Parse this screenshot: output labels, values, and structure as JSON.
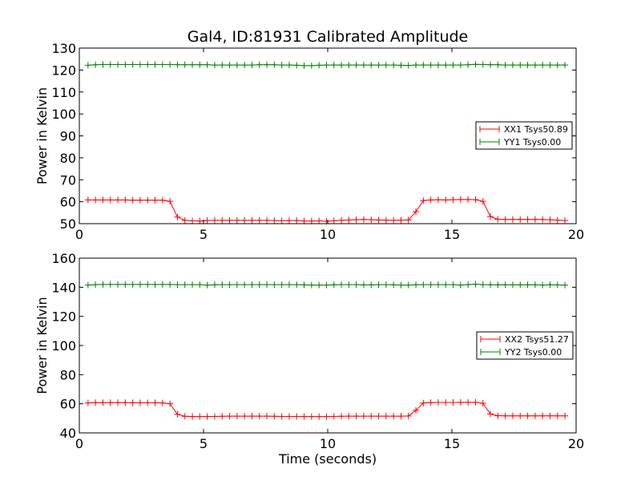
{
  "chart_data": [
    {
      "type": "line",
      "title": "Gal4, ID:81931 Calibrated Amplitude",
      "xlabel": "",
      "ylabel": "Power in Kelvin",
      "xlim": [
        0,
        20
      ],
      "ylim": [
        50,
        130
      ],
      "xticks": [
        0,
        5,
        10,
        15,
        20
      ],
      "yticks": [
        50,
        60,
        70,
        80,
        90,
        100,
        110,
        120,
        130
      ],
      "xtick_labels": [
        "0",
        "5",
        "10",
        "15",
        "20"
      ],
      "ytick_labels": [
        "50",
        "60",
        "70",
        "80",
        "90",
        "100",
        "110",
        "120",
        "130"
      ],
      "grid": false,
      "legend_position": "center-right",
      "marker": "plus",
      "x": [
        0.35,
        0.65,
        0.95,
        1.25,
        1.55,
        1.85,
        2.15,
        2.45,
        2.75,
        3.05,
        3.35,
        3.65,
        3.95,
        4.25,
        4.55,
        4.85,
        5.15,
        5.45,
        5.75,
        6.05,
        6.35,
        6.65,
        6.95,
        7.25,
        7.55,
        7.85,
        8.15,
        8.45,
        8.75,
        9.05,
        9.35,
        9.65,
        9.95,
        10.25,
        10.55,
        10.85,
        11.15,
        11.45,
        11.75,
        12.05,
        12.35,
        12.65,
        12.95,
        13.25,
        13.55,
        13.85,
        14.15,
        14.45,
        14.75,
        15.05,
        15.35,
        15.65,
        15.95,
        16.25,
        16.55,
        16.85,
        17.15,
        17.45,
        17.75,
        18.05,
        18.35,
        18.65,
        18.95,
        19.25,
        19.55
      ],
      "series": [
        {
          "name": "XX1 Tsys50.89",
          "color": "#ff0000",
          "values": [
            60.8,
            60.8,
            60.8,
            60.8,
            60.8,
            60.8,
            60.7,
            60.7,
            60.7,
            60.7,
            60.7,
            60.2,
            53.0,
            51.5,
            51.3,
            51.2,
            51.4,
            51.5,
            51.5,
            51.5,
            51.5,
            51.5,
            51.5,
            51.5,
            51.5,
            51.4,
            51.3,
            51.4,
            51.4,
            51.2,
            51.2,
            51.3,
            51.1,
            51.3,
            51.5,
            51.7,
            51.8,
            51.9,
            51.8,
            51.7,
            51.6,
            51.5,
            51.6,
            51.7,
            55.5,
            60.5,
            60.8,
            60.9,
            60.8,
            60.9,
            61.0,
            61.0,
            60.9,
            60.2,
            53.2,
            52.0,
            51.9,
            51.9,
            51.9,
            51.9,
            51.9,
            51.9,
            51.8,
            51.6,
            51.4
          ]
        },
        {
          "name": "YY1 Tsys0.00",
          "color": "#008000",
          "values": [
            122.2,
            122.4,
            122.5,
            122.5,
            122.5,
            122.5,
            122.5,
            122.5,
            122.5,
            122.5,
            122.5,
            122.5,
            122.4,
            122.4,
            122.4,
            122.4,
            122.4,
            122.3,
            122.3,
            122.3,
            122.3,
            122.3,
            122.3,
            122.4,
            122.4,
            122.4,
            122.3,
            122.3,
            122.2,
            122.0,
            122.0,
            122.2,
            122.3,
            122.3,
            122.3,
            122.3,
            122.3,
            122.3,
            122.3,
            122.3,
            122.3,
            122.3,
            122.2,
            122.1,
            122.3,
            122.3,
            122.3,
            122.3,
            122.3,
            122.3,
            122.3,
            122.4,
            122.6,
            122.5,
            122.4,
            122.4,
            122.3,
            122.3,
            122.3,
            122.3,
            122.3,
            122.3,
            122.3,
            122.3,
            122.3
          ]
        }
      ]
    },
    {
      "type": "line",
      "title": "",
      "xlabel": "Time (seconds)",
      "ylabel": "Power in Kelvin",
      "xlim": [
        0,
        20
      ],
      "ylim": [
        40,
        160
      ],
      "xticks": [
        0,
        5,
        10,
        15,
        20
      ],
      "yticks": [
        40,
        60,
        80,
        100,
        120,
        140,
        160
      ],
      "xtick_labels": [
        "0",
        "5",
        "10",
        "15",
        "20"
      ],
      "ytick_labels": [
        "40",
        "60",
        "80",
        "100",
        "120",
        "140",
        "160"
      ],
      "grid": false,
      "legend_position": "center-right",
      "marker": "plus",
      "x": [
        0.35,
        0.65,
        0.95,
        1.25,
        1.55,
        1.85,
        2.15,
        2.45,
        2.75,
        3.05,
        3.35,
        3.65,
        3.95,
        4.25,
        4.55,
        4.85,
        5.15,
        5.45,
        5.75,
        6.05,
        6.35,
        6.65,
        6.95,
        7.25,
        7.55,
        7.85,
        8.15,
        8.45,
        8.75,
        9.05,
        9.35,
        9.65,
        9.95,
        10.25,
        10.55,
        10.85,
        11.15,
        11.45,
        11.75,
        12.05,
        12.35,
        12.65,
        12.95,
        13.25,
        13.55,
        13.85,
        14.15,
        14.45,
        14.75,
        15.05,
        15.35,
        15.65,
        15.95,
        16.25,
        16.55,
        16.85,
        17.15,
        17.45,
        17.75,
        18.05,
        18.35,
        18.65,
        18.95,
        19.25,
        19.55
      ],
      "series": [
        {
          "name": "XX2 Tsys51.27",
          "color": "#ff0000",
          "values": [
            60.6,
            60.8,
            60.8,
            60.8,
            60.8,
            60.8,
            60.7,
            60.7,
            60.7,
            60.7,
            60.6,
            60.0,
            52.7,
            51.4,
            51.2,
            51.2,
            51.2,
            51.3,
            51.4,
            51.5,
            51.5,
            51.5,
            51.5,
            51.5,
            51.5,
            51.4,
            51.3,
            51.3,
            51.3,
            51.2,
            51.2,
            51.2,
            51.2,
            51.3,
            51.4,
            51.5,
            51.5,
            51.5,
            51.5,
            51.5,
            51.5,
            51.5,
            51.5,
            51.6,
            55.5,
            60.5,
            60.8,
            60.9,
            60.9,
            60.9,
            61.0,
            61.0,
            61.0,
            60.4,
            53.0,
            51.8,
            51.7,
            51.7,
            51.7,
            51.7,
            51.7,
            51.7,
            51.7,
            51.7,
            51.7
          ]
        },
        {
          "name": "YY2 Tsys0.00",
          "color": "#008000",
          "values": [
            141.5,
            141.8,
            141.9,
            141.9,
            141.9,
            141.9,
            141.9,
            141.9,
            141.9,
            141.9,
            141.9,
            141.9,
            141.8,
            141.8,
            141.8,
            141.8,
            141.5,
            141.7,
            141.8,
            141.8,
            141.8,
            141.8,
            141.8,
            141.8,
            141.8,
            141.8,
            141.8,
            141.8,
            141.8,
            141.6,
            141.5,
            141.5,
            141.5,
            141.7,
            141.8,
            141.8,
            141.8,
            141.6,
            141.6,
            141.8,
            141.8,
            141.7,
            141.5,
            141.5,
            141.7,
            141.8,
            141.8,
            141.8,
            141.8,
            141.8,
            141.5,
            141.8,
            142.1,
            141.8,
            141.7,
            141.7,
            141.7,
            141.7,
            141.7,
            141.7,
            141.7,
            141.5,
            141.7,
            141.6,
            141.5
          ]
        }
      ]
    }
  ]
}
